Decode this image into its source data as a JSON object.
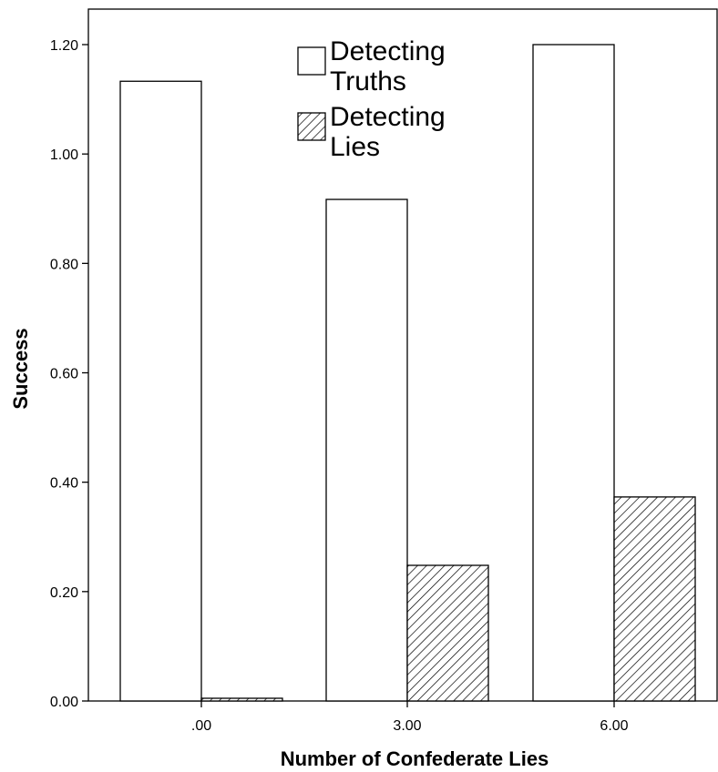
{
  "chart_data": {
    "type": "bar",
    "title": "",
    "xlabel": "Number of Confederate Lies",
    "ylabel": "Success",
    "categories": [
      ".00",
      "3.00",
      "6.00"
    ],
    "series": [
      {
        "name": "Detecting Truths",
        "pattern": "solid-white",
        "values": [
          1.133,
          0.917,
          1.2
        ]
      },
      {
        "name": "Detecting Lies",
        "pattern": "diagonal-hatch",
        "values": [
          0.005,
          0.248,
          0.373
        ]
      }
    ],
    "ylim": [
      0,
      1.3
    ],
    "yticks": [
      "0.00",
      "0.20",
      "0.40",
      "0.60",
      "0.80",
      "1.00",
      "1.20"
    ],
    "grid": false,
    "legend": {
      "position": "top-center",
      "entries": [
        {
          "lines": [
            "Detecting",
            "Truths"
          ]
        },
        {
          "lines": [
            "Detecting",
            "Lies"
          ]
        }
      ]
    }
  }
}
